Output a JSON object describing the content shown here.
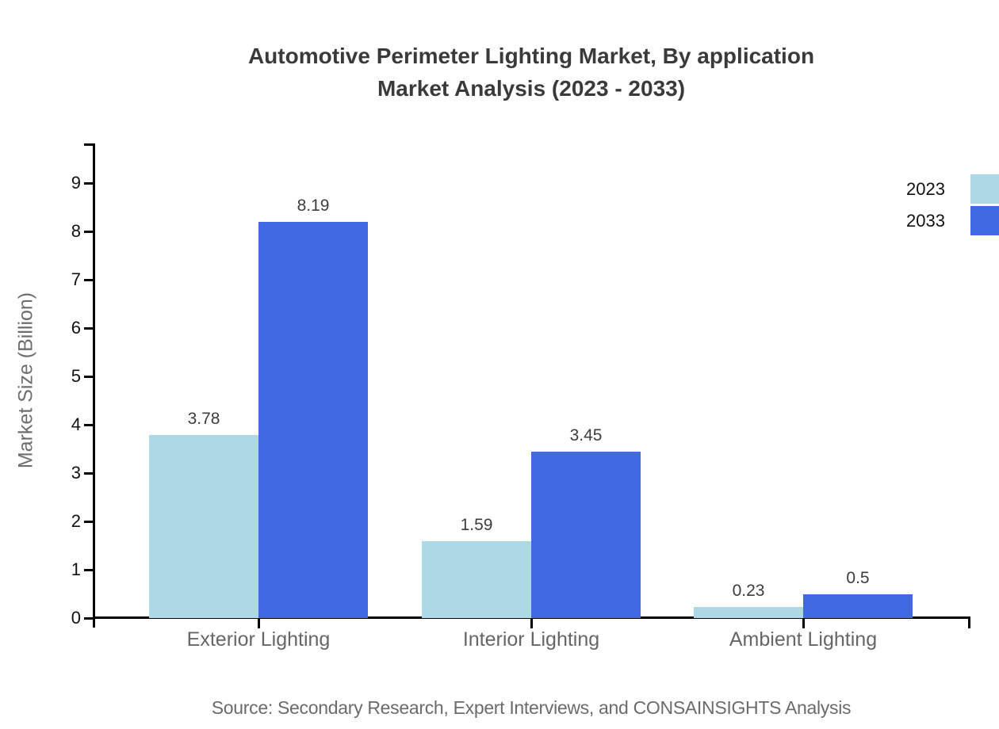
{
  "title": {
    "line1": "Automotive Perimeter Lighting Market, By application",
    "line2": "Market Analysis (2023 - 2033)"
  },
  "source": "Source: Secondary Research, Expert Interviews, and CONSAINSIGHTS Analysis",
  "chart_data": {
    "type": "bar",
    "categories": [
      "Exterior Lighting",
      "Interior Lighting",
      "Ambient Lighting"
    ],
    "series": [
      {
        "name": "2023",
        "color": "#add8e6",
        "values": [
          3.78,
          1.59,
          0.23
        ],
        "value_labels": [
          "3.78",
          "1.59",
          "0.23"
        ]
      },
      {
        "name": "2033",
        "color": "#4169e1",
        "values": [
          8.19,
          3.45,
          0.5
        ],
        "value_labels": [
          "8.19",
          "3.45",
          "0.5"
        ]
      }
    ],
    "title": "Automotive Perimeter Lighting Market, By application Market Analysis (2023 - 2033)",
    "xlabel": "",
    "ylabel": "Market Size (Billion)",
    "yticks": [
      0,
      1,
      2,
      3,
      4,
      5,
      6,
      7,
      8,
      9
    ],
    "ylim": [
      0,
      9.8
    ],
    "grid": false,
    "legend_position": "top-right",
    "bar_value_labels": true
  },
  "colors": {
    "axis": "#000000",
    "title_text": "#3a3a3a",
    "tick_label": "#111111",
    "category_label": "#666666",
    "value_label": "#3d3d3d",
    "source_text": "#6b6b6b",
    "series_2023": "#add8e6",
    "series_2033": "#4169e1"
  }
}
